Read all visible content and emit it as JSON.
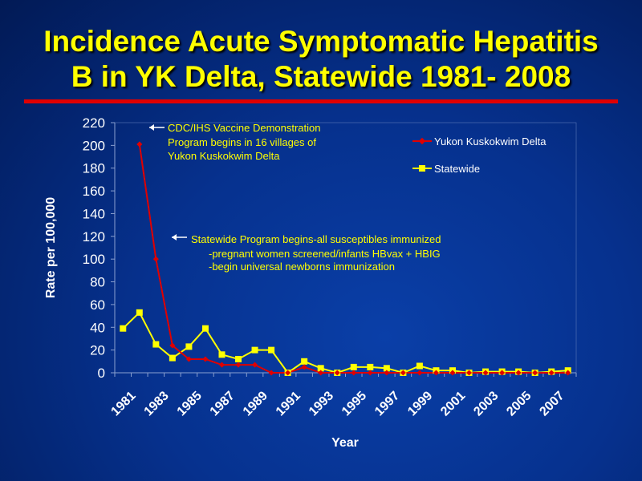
{
  "slide": {
    "title_line1": "Incidence Acute Symptomatic Hepatitis",
    "title_line2": "B in YK Delta, Statewide 1981- 2008"
  },
  "chart_data": {
    "type": "line",
    "title": "Incidence Acute Symptomatic Hepatitis B in YK Delta, Statewide 1981- 2008",
    "xlabel": "Year",
    "ylabel": "Rate per 100,000",
    "ylim": [
      0,
      220
    ],
    "yticks": [
      0,
      20,
      40,
      60,
      80,
      100,
      120,
      140,
      160,
      180,
      200,
      220
    ],
    "categories": [
      1981,
      1982,
      1983,
      1984,
      1985,
      1986,
      1987,
      1988,
      1989,
      1990,
      1991,
      1992,
      1993,
      1994,
      1995,
      1996,
      1997,
      1998,
      1999,
      2000,
      2001,
      2002,
      2003,
      2004,
      2005,
      2006,
      2007,
      2008
    ],
    "xtick_labels": [
      "1981",
      "1983",
      "1985",
      "1987",
      "1989",
      "1991",
      "1993",
      "1995",
      "1997",
      "1999",
      "2001",
      "2003",
      "2005",
      "2007"
    ],
    "legend_position": "top-right",
    "series": [
      {
        "name": "Yukon Kuskokwim Delta",
        "color": "#e00000",
        "marker": "diamond",
        "values": [
          null,
          201,
          100,
          24,
          12,
          12,
          7,
          7,
          7,
          0,
          0,
          5,
          0,
          0,
          0,
          0,
          0,
          0,
          0,
          0,
          0,
          0,
          0,
          0,
          0,
          0,
          0,
          0
        ]
      },
      {
        "name": "Statewide",
        "color": "#ffff00",
        "marker": "square",
        "values": [
          39,
          53,
          25,
          13,
          23,
          39,
          16,
          12,
          20,
          20,
          0,
          10,
          4,
          0,
          5,
          5,
          4,
          0,
          6,
          2,
          2,
          0,
          1,
          1,
          1,
          0,
          1,
          2
        ]
      }
    ],
    "annotations": [
      {
        "lines": [
          "CDC/IHS Vaccine Demonstration",
          "Program begins in 16 villages of",
          "Yukon Kuskokwim Delta"
        ]
      },
      {
        "lines": [
          "Statewide Program begins-all susceptibles immunized",
          "-pregnant women screened/infants HBvax + HBIG",
          "-begin universal newborns immunization"
        ]
      }
    ]
  }
}
